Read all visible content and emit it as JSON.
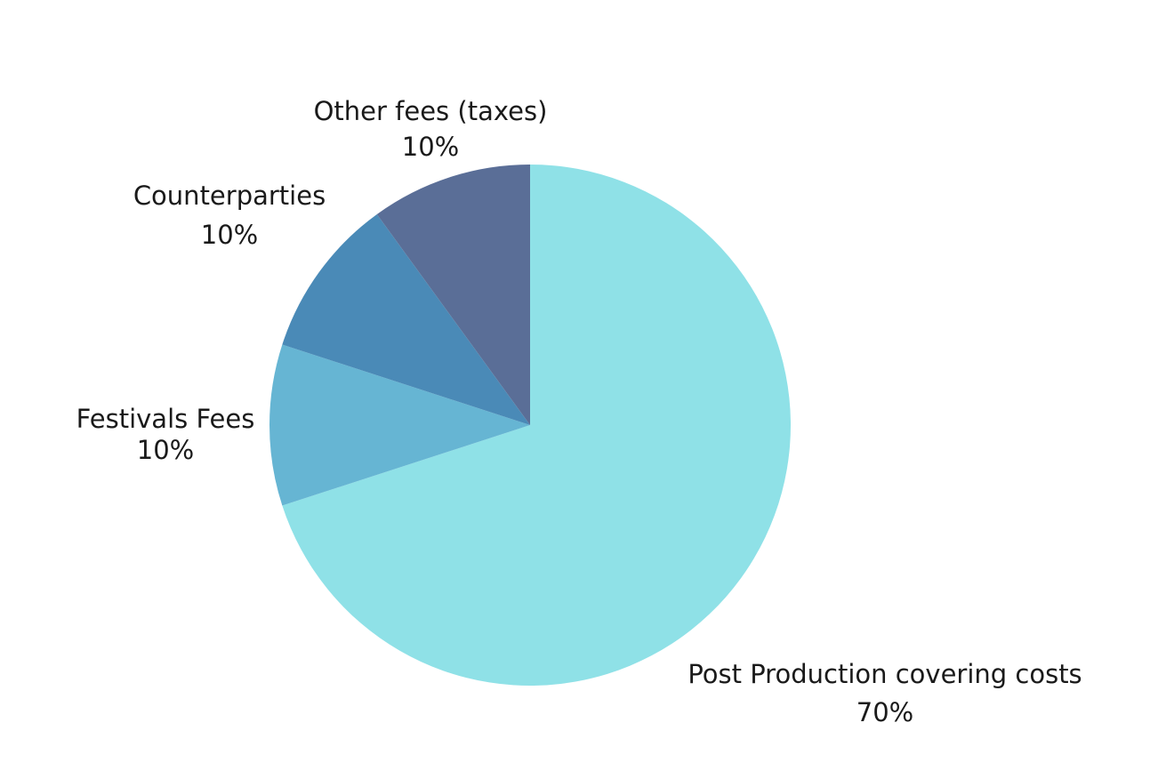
{
  "chart_data": {
    "type": "pie",
    "title": "",
    "slices": [
      {
        "label": "Post Production covering costs",
        "value": 70,
        "display": "70%",
        "color": "#8fe1e7"
      },
      {
        "label": "Festivals Fees",
        "value": 10,
        "display": "10%",
        "color": "#66b5d3"
      },
      {
        "label": "Counterparties",
        "value": 10,
        "display": "10%",
        "color": "#4a8ab7"
      },
      {
        "label": "Other fees (taxes)",
        "value": 10,
        "display": "10%",
        "color": "#5a6e97"
      }
    ],
    "start": "12 o'clock",
    "direction": "clockwise",
    "legend": "none",
    "labels": "outside"
  }
}
